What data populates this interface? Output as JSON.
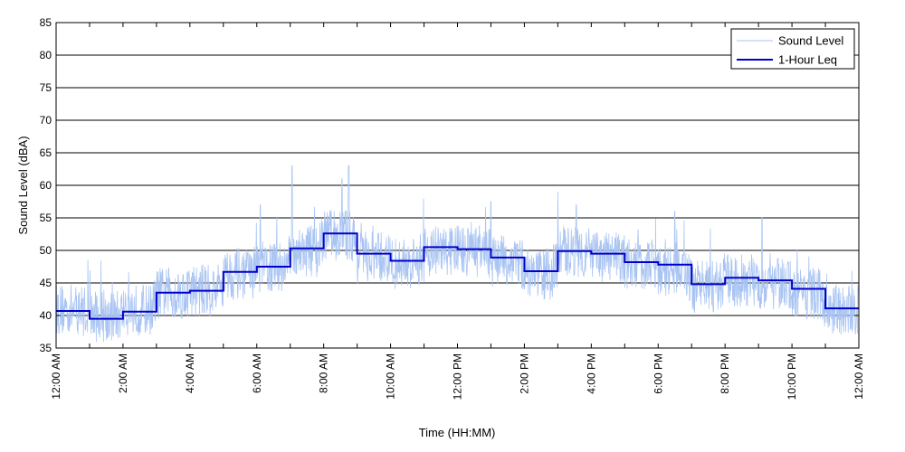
{
  "chart_data": {
    "type": "line",
    "xlabel": "Time (HH:MM)",
    "ylabel": "Sound Level (dBA)",
    "ylim": [
      35,
      85
    ],
    "yticks": [
      35,
      40,
      45,
      50,
      55,
      60,
      65,
      70,
      75,
      80,
      85
    ],
    "xlim": [
      0,
      24
    ],
    "xticks": [
      0,
      2,
      4,
      6,
      8,
      10,
      12,
      14,
      16,
      18,
      20,
      22,
      24
    ],
    "xtick_labels": [
      "12:00 AM",
      "2:00 AM",
      "4:00 AM",
      "6:00 AM",
      "8:00 AM",
      "10:00 AM",
      "12:00 PM",
      "2:00 PM",
      "4:00 PM",
      "6:00 PM",
      "8:00 PM",
      "10:00 PM",
      "12:00 AM"
    ],
    "grid": "horizontal",
    "legend_position": "top-right",
    "series": [
      {
        "name": "Sound Level",
        "color": "#a9c4f2",
        "style": "thin-noisy",
        "hourly_mean": [
          40.5,
          39.5,
          40.5,
          43,
          43.5,
          46,
          47,
          49.5,
          52,
          48.5,
          47.5,
          49.5,
          49.5,
          48,
          46,
          49.5,
          48.5,
          47.5,
          46.5,
          44,
          45,
          44.5,
          43,
          40.5
        ],
        "spread": 4,
        "peaks": [
          {
            "x": 7.05,
            "y": 63
          },
          {
            "x": 8.75,
            "y": 63
          },
          {
            "x": 8.55,
            "y": 61
          },
          {
            "x": 6.1,
            "y": 57
          },
          {
            "x": 13.0,
            "y": 57.5
          },
          {
            "x": 15.55,
            "y": 57
          },
          {
            "x": 18.5,
            "y": 56
          },
          {
            "x": 21.1,
            "y": 55
          }
        ]
      },
      {
        "name": "1-Hour Leq",
        "color": "#0000cc",
        "style": "step",
        "x": [
          0,
          1,
          2,
          3,
          4,
          5,
          6,
          7,
          8,
          9,
          10,
          11,
          12,
          13,
          14,
          15,
          16,
          17,
          18,
          19,
          20,
          21,
          22,
          23
        ],
        "values": [
          40.7,
          39.5,
          40.6,
          43.5,
          43.8,
          46.7,
          47.5,
          50.3,
          52.6,
          49.5,
          48.4,
          50.5,
          50.2,
          48.9,
          46.8,
          49.9,
          49.5,
          48.2,
          47.8,
          44.8,
          45.8,
          45.4,
          44.1,
          41.1
        ]
      }
    ]
  }
}
